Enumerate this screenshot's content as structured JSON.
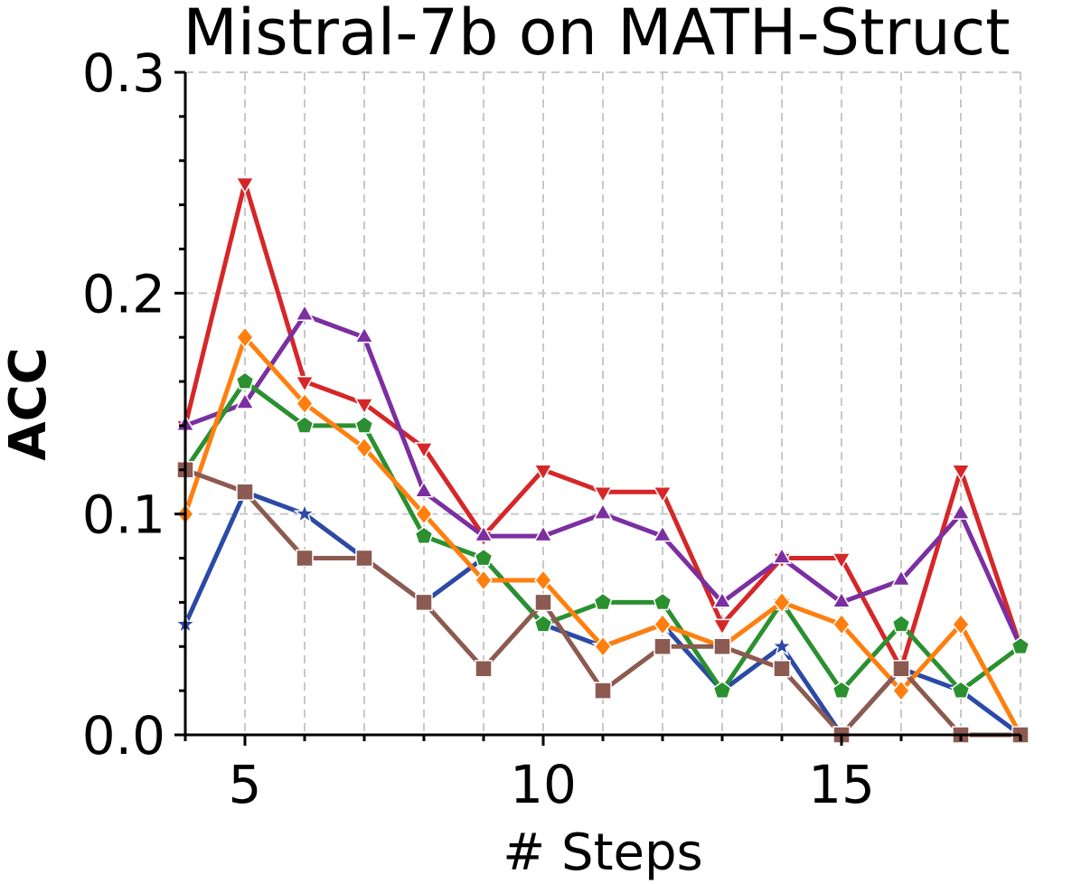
{
  "chart_data": {
    "type": "line",
    "title": "Mistral-7b on MATH-Struct",
    "xlabel": "# Steps",
    "ylabel": "ACC",
    "xlim": [
      4,
      18
    ],
    "ylim": [
      0,
      0.3
    ],
    "x": [
      4,
      5,
      6,
      7,
      8,
      9,
      10,
      11,
      12,
      13,
      14,
      15,
      16,
      17,
      18
    ],
    "xticks": [
      5,
      10,
      15
    ],
    "xtick_labels": [
      "5",
      "10",
      "15"
    ],
    "yticks": [
      0.0,
      0.1,
      0.2,
      0.3
    ],
    "ytick_labels": [
      "0.0",
      "0.1",
      "0.2",
      "0.3"
    ],
    "grid": true,
    "series": [
      {
        "name": "blue-star",
        "color": "#2b4aa5",
        "marker": "star",
        "values": [
          0.05,
          0.11,
          0.1,
          0.08,
          0.06,
          0.08,
          0.05,
          0.04,
          0.05,
          0.02,
          0.04,
          0.0,
          0.03,
          0.02,
          0.0
        ]
      },
      {
        "name": "red-triangle-down",
        "color": "#d62728",
        "marker": "triangle-down",
        "values": [
          0.14,
          0.25,
          0.16,
          0.15,
          0.13,
          0.09,
          0.12,
          0.11,
          0.11,
          0.05,
          0.08,
          0.08,
          0.03,
          0.12,
          0.04
        ]
      },
      {
        "name": "purple-triangle-up",
        "color": "#7b2fa0",
        "marker": "triangle-up",
        "values": [
          0.14,
          0.15,
          0.19,
          0.18,
          0.11,
          0.09,
          0.09,
          0.1,
          0.09,
          0.06,
          0.08,
          0.06,
          0.07,
          0.1,
          0.04
        ]
      },
      {
        "name": "green-pentagon",
        "color": "#2a9030",
        "marker": "pentagon",
        "values": [
          0.12,
          0.16,
          0.14,
          0.14,
          0.09,
          0.08,
          0.05,
          0.06,
          0.06,
          0.02,
          0.06,
          0.02,
          0.05,
          0.02,
          0.04
        ]
      },
      {
        "name": "orange-diamond",
        "color": "#ff7f0e",
        "marker": "diamond",
        "values": [
          0.1,
          0.18,
          0.15,
          0.13,
          0.1,
          0.07,
          0.07,
          0.04,
          0.05,
          0.04,
          0.06,
          0.05,
          0.02,
          0.05,
          0.0
        ]
      },
      {
        "name": "brown-square",
        "color": "#8c5a50",
        "marker": "square",
        "values": [
          0.12,
          0.11,
          0.08,
          0.08,
          0.06,
          0.03,
          0.06,
          0.02,
          0.04,
          0.04,
          0.03,
          0.0,
          0.03,
          0.0,
          0.0
        ]
      }
    ]
  }
}
